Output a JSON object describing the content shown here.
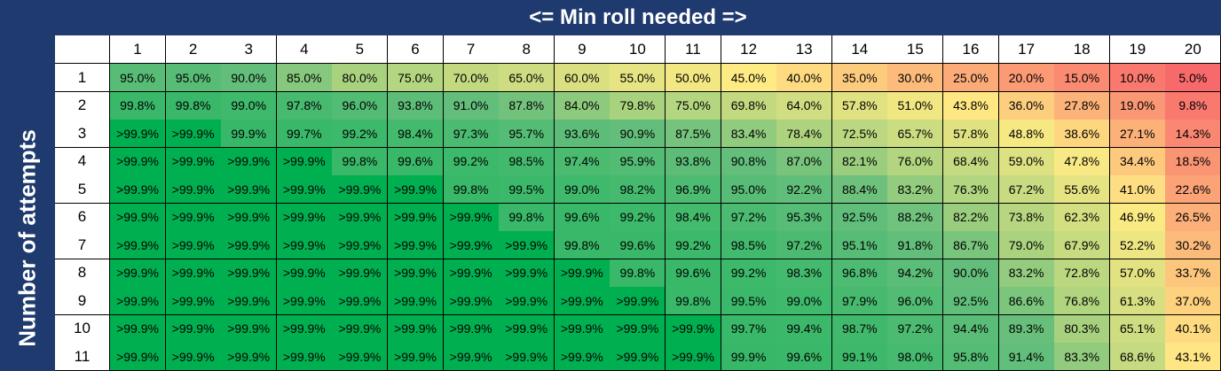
{
  "chart_data": {
    "type": "heatmap",
    "title": "<= Min roll needed =>",
    "ylabel": "Number of attempts",
    "columns": [
      "1",
      "2",
      "3",
      "4",
      "5",
      "6",
      "7",
      "8",
      "9",
      "10",
      "11",
      "12",
      "13",
      "14",
      "15",
      "16",
      "17",
      "18",
      "19",
      "20"
    ],
    "rows": [
      "1",
      "2",
      "3",
      "4",
      "5",
      "6",
      "7",
      "8",
      "9",
      "10",
      "11"
    ],
    "values": [
      [
        "95.0%",
        "95.0%",
        "90.0%",
        "85.0%",
        "80.0%",
        "75.0%",
        "70.0%",
        "65.0%",
        "60.0%",
        "55.0%",
        "50.0%",
        "45.0%",
        "40.0%",
        "35.0%",
        "30.0%",
        "25.0%",
        "20.0%",
        "15.0%",
        "10.0%",
        "5.0%"
      ],
      [
        "99.8%",
        "99.8%",
        "99.0%",
        "97.8%",
        "96.0%",
        "93.8%",
        "91.0%",
        "87.8%",
        "84.0%",
        "79.8%",
        "75.0%",
        "69.8%",
        "64.0%",
        "57.8%",
        "51.0%",
        "43.8%",
        "36.0%",
        "27.8%",
        "19.0%",
        "9.8%"
      ],
      [
        ">99.9%",
        ">99.9%",
        "99.9%",
        "99.7%",
        "99.2%",
        "98.4%",
        "97.3%",
        "95.7%",
        "93.6%",
        "90.9%",
        "87.5%",
        "83.4%",
        "78.4%",
        "72.5%",
        "65.7%",
        "57.8%",
        "48.8%",
        "38.6%",
        "27.1%",
        "14.3%"
      ],
      [
        ">99.9%",
        ">99.9%",
        ">99.9%",
        ">99.9%",
        "99.8%",
        "99.6%",
        "99.2%",
        "98.5%",
        "97.4%",
        "95.9%",
        "93.8%",
        "90.8%",
        "87.0%",
        "82.1%",
        "76.0%",
        "68.4%",
        "59.0%",
        "47.8%",
        "34.4%",
        "18.5%"
      ],
      [
        ">99.9%",
        ">99.9%",
        ">99.9%",
        ">99.9%",
        ">99.9%",
        ">99.9%",
        "99.8%",
        "99.5%",
        "99.0%",
        "98.2%",
        "96.9%",
        "95.0%",
        "92.2%",
        "88.4%",
        "83.2%",
        "76.3%",
        "67.2%",
        "55.6%",
        "41.0%",
        "22.6%"
      ],
      [
        ">99.9%",
        ">99.9%",
        ">99.9%",
        ">99.9%",
        ">99.9%",
        ">99.9%",
        ">99.9%",
        "99.8%",
        "99.6%",
        "99.2%",
        "98.4%",
        "97.2%",
        "95.3%",
        "92.5%",
        "88.2%",
        "82.2%",
        "73.8%",
        "62.3%",
        "46.9%",
        "26.5%"
      ],
      [
        ">99.9%",
        ">99.9%",
        ">99.9%",
        ">99.9%",
        ">99.9%",
        ">99.9%",
        ">99.9%",
        ">99.9%",
        "99.8%",
        "99.6%",
        "99.2%",
        "98.5%",
        "97.2%",
        "95.1%",
        "91.8%",
        "86.7%",
        "79.0%",
        "67.9%",
        "52.2%",
        "30.2%"
      ],
      [
        ">99.9%",
        ">99.9%",
        ">99.9%",
        ">99.9%",
        ">99.9%",
        ">99.9%",
        ">99.9%",
        ">99.9%",
        ">99.9%",
        "99.8%",
        "99.6%",
        "99.2%",
        "98.3%",
        "96.8%",
        "94.2%",
        "90.0%",
        "83.2%",
        "72.8%",
        "57.0%",
        "33.7%"
      ],
      [
        ">99.9%",
        ">99.9%",
        ">99.9%",
        ">99.9%",
        ">99.9%",
        ">99.9%",
        ">99.9%",
        ">99.9%",
        ">99.9%",
        ">99.9%",
        "99.8%",
        "99.5%",
        "99.0%",
        "97.9%",
        "96.0%",
        "92.5%",
        "86.6%",
        "76.8%",
        "61.3%",
        "37.0%"
      ],
      [
        ">99.9%",
        ">99.9%",
        ">99.9%",
        ">99.9%",
        ">99.9%",
        ">99.9%",
        ">99.9%",
        ">99.9%",
        ">99.9%",
        ">99.9%",
        ">99.9%",
        "99.7%",
        "99.4%",
        "98.7%",
        "97.2%",
        "94.4%",
        "89.3%",
        "80.3%",
        "65.1%",
        "40.1%"
      ],
      [
        ">99.9%",
        ">99.9%",
        ">99.9%",
        ">99.9%",
        ">99.9%",
        ">99.9%",
        ">99.9%",
        ">99.9%",
        ">99.9%",
        ">99.9%",
        ">99.9%",
        "99.9%",
        "99.6%",
        "99.1%",
        "98.0%",
        "95.8%",
        "91.4%",
        "83.3%",
        "68.6%",
        "43.1%"
      ]
    ],
    "color_scale": {
      "low": "#f8696b",
      "mid": "#ffeb84",
      "high": "#63be7b",
      "max": "#00b050"
    },
    "legend": "none",
    "grid": true
  },
  "colors": {
    "header_bg": "#1f3a6e",
    "header_text": "#ffffff"
  }
}
